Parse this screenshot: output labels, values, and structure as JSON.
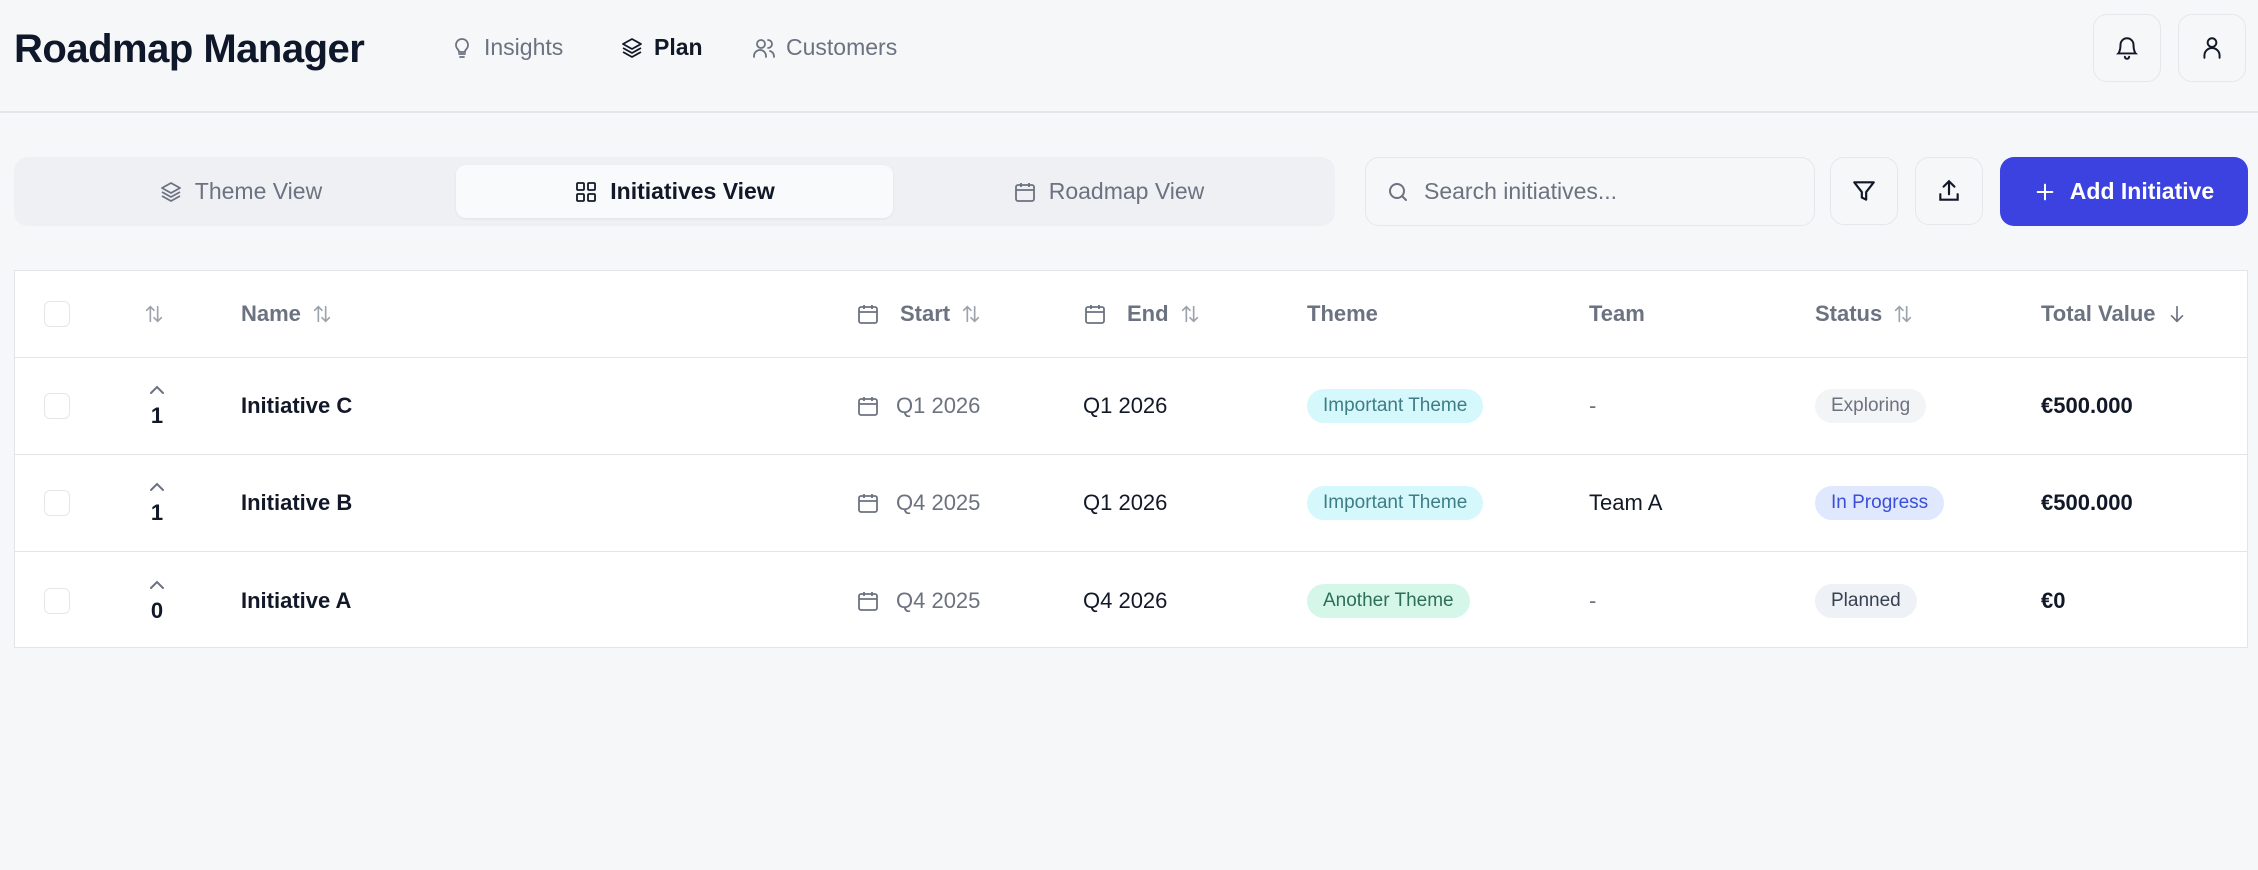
{
  "header": {
    "title": "Roadmap Manager",
    "nav": [
      {
        "label": "Insights",
        "icon": "lightbulb-icon"
      },
      {
        "label": "Plan",
        "icon": "layers-icon",
        "active": true
      },
      {
        "label": "Customers",
        "icon": "users-icon"
      }
    ]
  },
  "views": [
    {
      "label": "Theme View",
      "icon": "layers-icon"
    },
    {
      "label": "Initiatives View",
      "icon": "grid-icon",
      "active": true
    },
    {
      "label": "Roadmap View",
      "icon": "calendar-icon"
    }
  ],
  "toolbar": {
    "search_placeholder": "Search initiatives...",
    "search_value": "",
    "add_label": "Add Initiative"
  },
  "table": {
    "columns": [
      "Name",
      "Start",
      "End",
      "Theme",
      "Team",
      "Status",
      "Total Value"
    ],
    "rows": [
      {
        "votes": "1",
        "name": "Initiative C",
        "start": "Q1 2026",
        "end": "Q1 2026",
        "theme": "Important Theme",
        "team": "-",
        "status": "Exploring",
        "total": "€500.000"
      },
      {
        "votes": "1",
        "name": "Initiative B",
        "start": "Q4 2025",
        "end": "Q1 2026",
        "theme": "Important Theme",
        "team": "Team A",
        "status": "In Progress",
        "total": "€500.000"
      },
      {
        "votes": "0",
        "name": "Initiative A",
        "start": "Q4 2025",
        "end": "Q4 2026",
        "theme": "Another Theme",
        "team": "-",
        "status": "Planned",
        "total": "€0"
      }
    ]
  },
  "colors": {
    "accent": "#3b42e0",
    "theme_important_bg": "#d5f8fc",
    "theme_important_fg": "#3f7d86",
    "theme_another_bg": "#d4f7ea",
    "theme_another_fg": "#2f6f55",
    "status_exploring_bg": "#f3f4f6",
    "status_exploring_fg": "#6b7280",
    "status_inprogress_bg": "#dfe8fd",
    "status_inprogress_fg": "#3b4fd8",
    "status_planned_bg": "#eef1f6",
    "status_planned_fg": "#374151"
  }
}
